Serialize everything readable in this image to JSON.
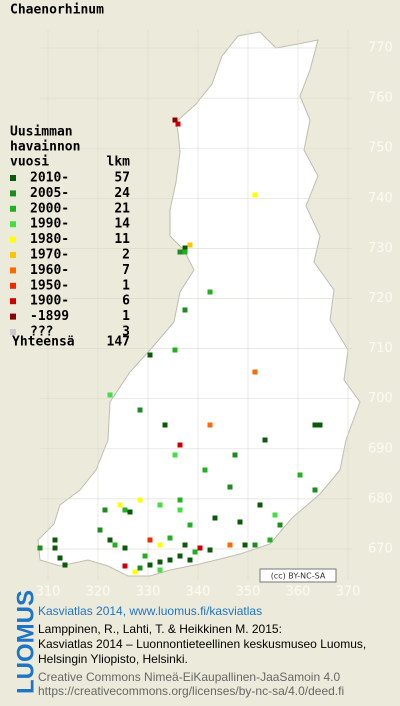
{
  "title": "Chaenorhinum",
  "legend": {
    "heading": [
      "Uusimman",
      "havainnon",
      "vuosi"
    ],
    "count_heading": "lkm",
    "rows": [
      {
        "label": "2010-",
        "count": 57,
        "color": "#0a5a0a"
      },
      {
        "label": "2005-",
        "count": 24,
        "color": "#1f8a1f"
      },
      {
        "label": "2000-",
        "count": 21,
        "color": "#22b022"
      },
      {
        "label": "1990-",
        "count": 14,
        "color": "#44dd44"
      },
      {
        "label": "1980-",
        "count": 11,
        "color": "#ffff00"
      },
      {
        "label": "1970-",
        "count": 2,
        "color": "#ffc400"
      },
      {
        "label": "1960-",
        "count": 7,
        "color": "#ff6a00"
      },
      {
        "label": "1950-",
        "count": 1,
        "color": "#ee2a00"
      },
      {
        "label": "1900-",
        "count": 6,
        "color": "#cc0000"
      },
      {
        "label": "-1899",
        "count": 1,
        "color": "#880000"
      },
      {
        "label": "???",
        "count": 3,
        "color": "#cccccc"
      }
    ],
    "total_label": "Yhteensä",
    "total": 147
  },
  "grid": {
    "y_labels": [
      770,
      760,
      750,
      740,
      730,
      720,
      710,
      700,
      690,
      680,
      670
    ],
    "x_labels": [
      310,
      320,
      330,
      340,
      350,
      360,
      370
    ]
  },
  "badge": "(cc) BY-NC-SA",
  "footer": {
    "logo": "LUOMUS",
    "site": "Kasviatlas 2014, www.luomus.fi/kasviatlas",
    "citation": [
      "Lamppinen, R., Lahti, T. & Heikkinen M. 2015:",
      "Kasviatlas 2014 – Luonnontieteellinen keskusmuseo Luomus,",
      "Helsingin Yliopisto, Helsinki."
    ],
    "license": [
      "Creative Commons Nimeä-EiKaupallinen-JaaSamoin 4.0",
      "https://creativecommons.org/licenses/by-nc-sa/4.0/deed.fi"
    ]
  }
}
